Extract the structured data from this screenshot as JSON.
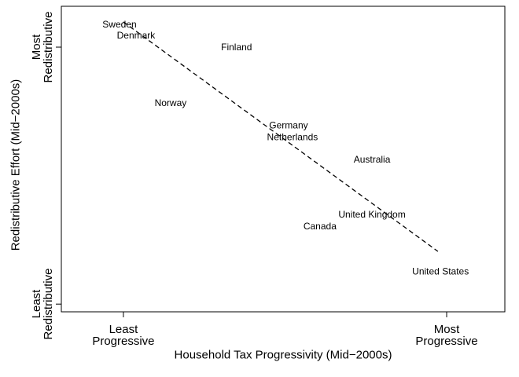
{
  "chart_data": {
    "type": "scatter",
    "x_label": "Household Tax Progressivity (Mid−2000s)",
    "y_label": "Redistributive Effort (Mid−2000s)",
    "point_labels": [
      "Sweden",
      "Denmark",
      "Finland",
      "Norway",
      "Germany",
      "Netherlands",
      "Australia",
      "United Kingdom",
      "Canada",
      "United States"
    ],
    "x": [
      -0.012,
      0.039,
      0.35,
      0.146,
      0.511,
      0.523,
      0.769,
      0.769,
      0.608,
      0.981
    ],
    "values": [
      1.086,
      1.043,
      0.997,
      0.78,
      0.694,
      0.648,
      0.56,
      0.346,
      0.3,
      0.125
    ],
    "fit_line": {
      "x": [
        0,
        0.973
      ],
      "y": [
        1.098,
        0.205
      ]
    },
    "xlim": [
      -0.192,
      1.18
    ],
    "ylim": [
      -0.03,
      1.159
    ],
    "xticks": [
      {
        "value": 0,
        "label": "Least Progressive"
      },
      {
        "value": 1,
        "label": "Most Progressive"
      }
    ],
    "yticks": [
      {
        "value": 0,
        "label": "Least Redistributive"
      },
      {
        "value": 1,
        "label": "Most Redistributive"
      }
    ]
  }
}
